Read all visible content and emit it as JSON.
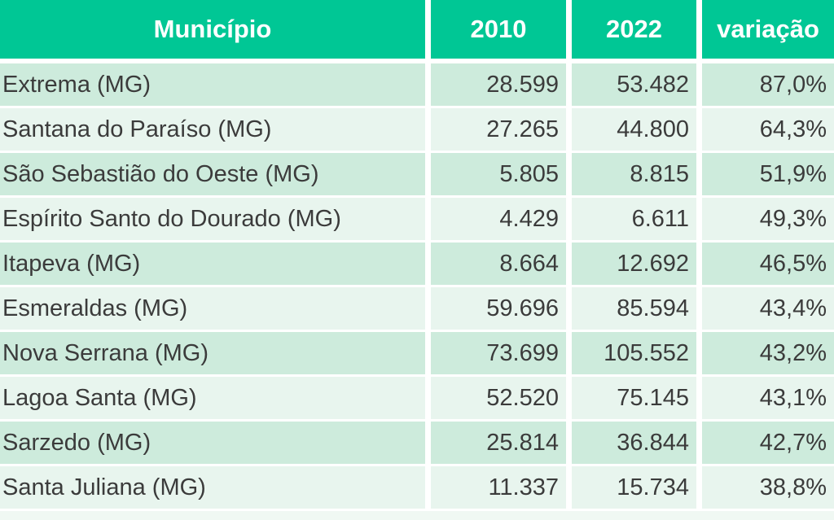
{
  "chart_data": {
    "type": "table",
    "title": "",
    "columns": [
      "Município",
      "2010",
      "2022",
      "variação"
    ],
    "rows": [
      {
        "municipio": "Extrema (MG)",
        "pop2010": "28.599",
        "pop2022": "53.482",
        "variacao": "87,0%"
      },
      {
        "municipio": "Santana do Paraíso (MG)",
        "pop2010": "27.265",
        "pop2022": "44.800",
        "variacao": "64,3%"
      },
      {
        "municipio": "São Sebastião do Oeste (MG)",
        "pop2010": "5.805",
        "pop2022": "8.815",
        "variacao": "51,9%"
      },
      {
        "municipio": "Espírito Santo do Dourado (MG)",
        "pop2010": "4.429",
        "pop2022": "6.611",
        "variacao": "49,3%"
      },
      {
        "municipio": "Itapeva (MG)",
        "pop2010": "8.664",
        "pop2022": "12.692",
        "variacao": "46,5%"
      },
      {
        "municipio": "Esmeraldas (MG)",
        "pop2010": "59.696",
        "pop2022": "85.594",
        "variacao": "43,4%"
      },
      {
        "municipio": "Nova Serrana (MG)",
        "pop2010": "73.699",
        "pop2022": "105.552",
        "variacao": "43,2%"
      },
      {
        "municipio": "Lagoa Santa (MG)",
        "pop2010": "52.520",
        "pop2022": "75.145",
        "variacao": "43,1%"
      },
      {
        "municipio": "Sarzedo (MG)",
        "pop2010": "25.814",
        "pop2022": "36.844",
        "variacao": "42,7%"
      },
      {
        "municipio": "Santa Juliana (MG)",
        "pop2010": "11.337",
        "pop2022": "15.734",
        "variacao": "38,8%"
      }
    ],
    "layout": {
      "legend": "none",
      "grid": "off",
      "row_striping": "alternating"
    }
  },
  "colors": {
    "header_bg": "#00C795",
    "header_text": "#FFFFFF",
    "row_odd": "#CDEBDC",
    "row_even": "#E8F5EE",
    "bottom_strip": "#F0F8F3",
    "text": "#3B3B3B",
    "page_bg": "#FFFFFF"
  }
}
